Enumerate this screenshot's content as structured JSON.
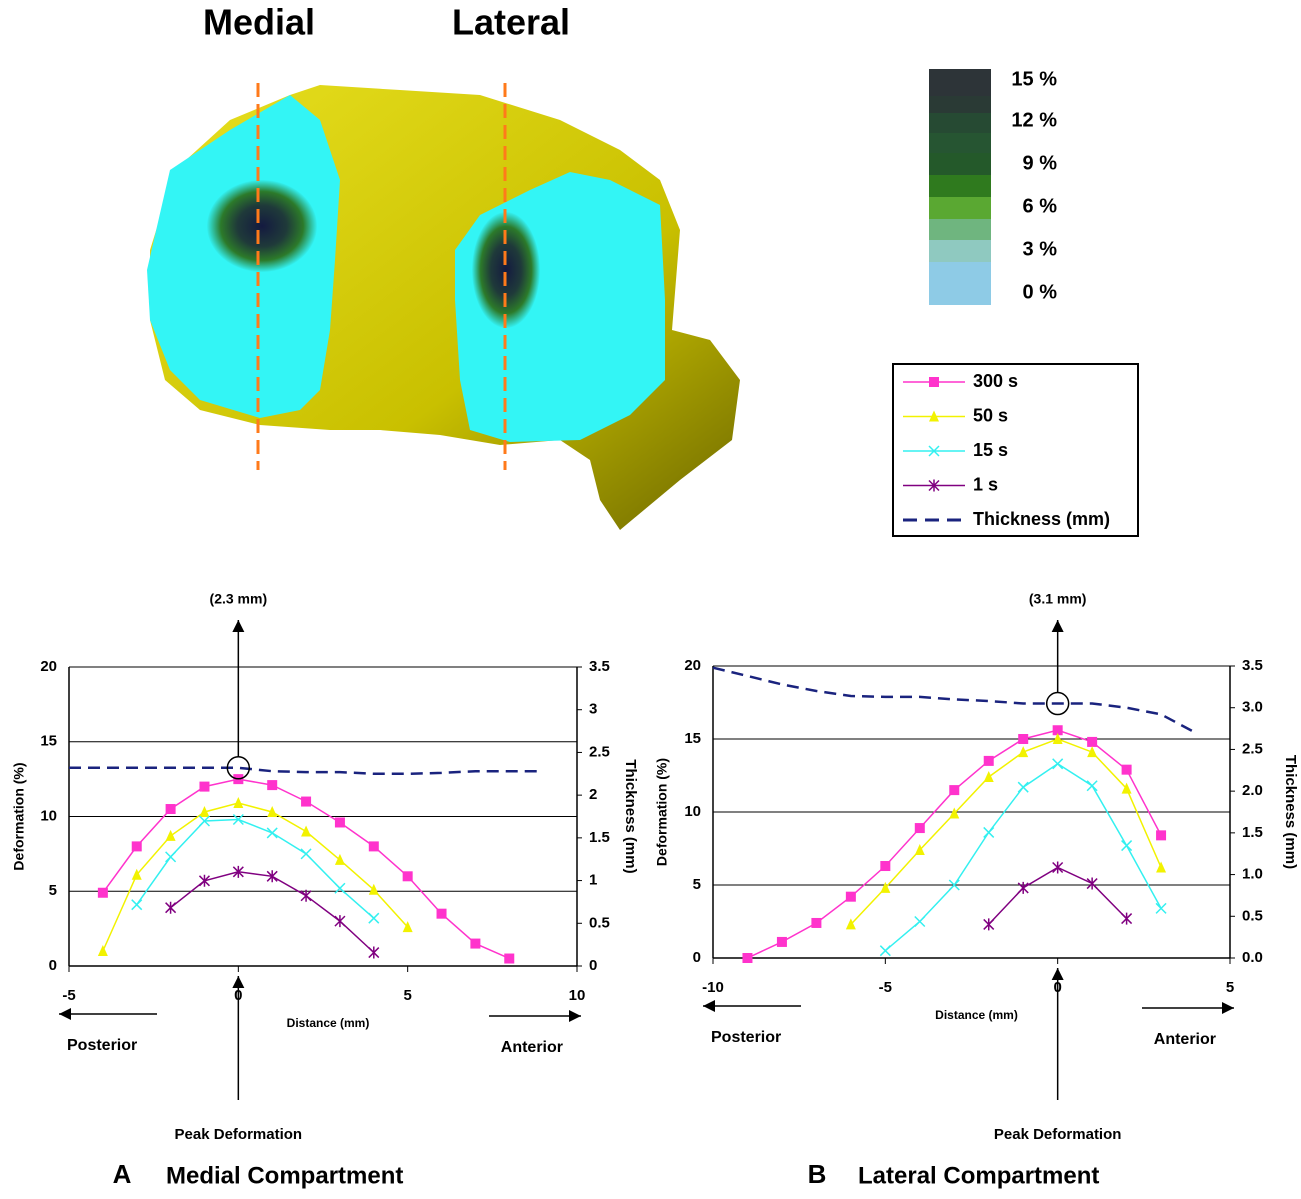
{
  "image": {
    "labels": [
      "Medial",
      "Lateral"
    ],
    "colorbar_labels": [
      "15 %",
      "12 %",
      "9 %",
      "6 %",
      "3 %",
      "0 %"
    ]
  },
  "chart_data": [
    {
      "type": "line",
      "panel": "A",
      "title": "Medial Compartment",
      "annotation": "(2.3 mm)",
      "peak_label": "Peak Deformation",
      "left_label": "Posterior",
      "right_label": "Anterior",
      "xlabel": "Distance (mm)",
      "ylabel": "Deformation (%)",
      "y2label": "Thickness (mm)",
      "xlim": [
        -5,
        10
      ],
      "xticks": [
        -5,
        0,
        5,
        10
      ],
      "ylim": [
        0,
        20
      ],
      "yticks": [
        0,
        5,
        10,
        15,
        20
      ],
      "y2lim": [
        0,
        3.5
      ],
      "y2ticks": [
        0,
        0.5,
        1,
        1.5,
        2,
        2.5,
        3,
        3.5
      ],
      "grid": true,
      "series": [
        {
          "name": "300 s",
          "color": "#ff33cc",
          "marker": "square",
          "x": [
            -4,
            -3,
            -2,
            -1,
            0,
            1,
            2,
            3,
            4,
            5,
            6,
            7,
            8
          ],
          "values": [
            4.9,
            8.0,
            10.5,
            12.0,
            12.5,
            12.1,
            11.0,
            9.6,
            8.0,
            6.0,
            3.5,
            1.5,
            0.5
          ]
        },
        {
          "name": "50 s",
          "color": "#f2f200",
          "marker": "triangle",
          "x": [
            -4,
            -3,
            -2,
            -1,
            0,
            1,
            2,
            3,
            4,
            5
          ],
          "values": [
            1.0,
            6.1,
            8.7,
            10.3,
            10.9,
            10.3,
            9.0,
            7.1,
            5.1,
            2.6
          ]
        },
        {
          "name": "15 s",
          "color": "#33f0f0",
          "marker": "x",
          "x": [
            -3,
            -2,
            -1,
            0,
            1,
            2,
            3,
            4
          ],
          "values": [
            4.1,
            7.3,
            9.7,
            9.8,
            8.9,
            7.5,
            5.2,
            3.2
          ]
        },
        {
          "name": "1 s",
          "color": "#800080",
          "marker": "star",
          "x": [
            -2,
            -1,
            0,
            1,
            2,
            3,
            4
          ],
          "values": [
            3.9,
            5.7,
            6.3,
            6.0,
            4.7,
            3.0,
            0.9
          ]
        },
        {
          "name": "Thickness (mm)",
          "color": "#1a237e",
          "dash": true,
          "axis": "y2",
          "x": [
            -5,
            -4,
            -3,
            -2,
            -1,
            0,
            1,
            2,
            3,
            4,
            5,
            6,
            7,
            8,
            9
          ],
          "values": [
            2.32,
            2.32,
            2.32,
            2.32,
            2.32,
            2.32,
            2.28,
            2.27,
            2.27,
            2.25,
            2.25,
            2.26,
            2.28,
            2.28,
            2.28
          ]
        }
      ]
    },
    {
      "type": "line",
      "panel": "B",
      "title": "Lateral Compartment",
      "annotation": "(3.1 mm)",
      "peak_label": "Peak Deformation",
      "left_label": "Posterior",
      "right_label": "Anterior",
      "xlabel": "Distance (mm)",
      "ylabel": "Deformation (%)",
      "y2label": "Thickness (mm)",
      "xlim": [
        -10,
        5
      ],
      "xticks": [
        -10,
        -5,
        0,
        5
      ],
      "ylim": [
        0,
        20
      ],
      "yticks": [
        0,
        5,
        10,
        15,
        20
      ],
      "y2lim": [
        0,
        3.5
      ],
      "y2ticks": [
        {
          "value": 0,
          "label": "0.0"
        },
        0.5,
        {
          "value": 1,
          "label": "1.0"
        },
        1.5,
        {
          "value": 2,
          "label": "2.0"
        },
        2.5,
        {
          "value": 3,
          "label": "3.0"
        },
        3.5
      ],
      "grid": true,
      "series": [
        {
          "color": "#ff33cc",
          "marker": "square",
          "x": [
            -9,
            -8,
            -7,
            -6,
            -5,
            -4,
            -3,
            -2,
            -1,
            0,
            1,
            2,
            3
          ],
          "values": [
            0,
            1.1,
            2.4,
            4.2,
            6.3,
            8.9,
            11.5,
            13.5,
            15.0,
            15.6,
            14.8,
            12.9,
            8.4
          ]
        },
        {
          "color": "#f2f200",
          "marker": "triangle",
          "x": [
            -6,
            -5,
            -4,
            -3,
            -2,
            -1,
            0,
            1,
            2,
            3
          ],
          "values": [
            2.3,
            4.8,
            7.4,
            9.9,
            12.4,
            14.1,
            15.0,
            14.1,
            11.6,
            6.2
          ]
        },
        {
          "color": "#33f0f0",
          "marker": "x",
          "x": [
            -5,
            -4,
            -3,
            -2,
            -1,
            0,
            1,
            2,
            3
          ],
          "values": [
            0.5,
            2.5,
            5.0,
            8.6,
            11.7,
            13.3,
            11.8,
            7.7,
            3.4
          ]
        },
        {
          "color": "#800080",
          "marker": "star",
          "x": [
            -2,
            -1,
            0,
            1,
            2
          ],
          "values": [
            2.3,
            4.8,
            6.2,
            5.1,
            2.7
          ]
        },
        {
          "color": "#1a237e",
          "dash": true,
          "axis": "y2",
          "x": [
            -10,
            -9,
            -8,
            -7,
            -6,
            -5,
            -4,
            -3,
            -2,
            -1,
            0,
            1,
            2,
            3,
            4
          ],
          "values": [
            3.48,
            3.38,
            3.28,
            3.2,
            3.14,
            3.13,
            3.13,
            3.1,
            3.08,
            3.05,
            3.05,
            3.05,
            3.0,
            2.92,
            2.7
          ]
        }
      ]
    }
  ]
}
